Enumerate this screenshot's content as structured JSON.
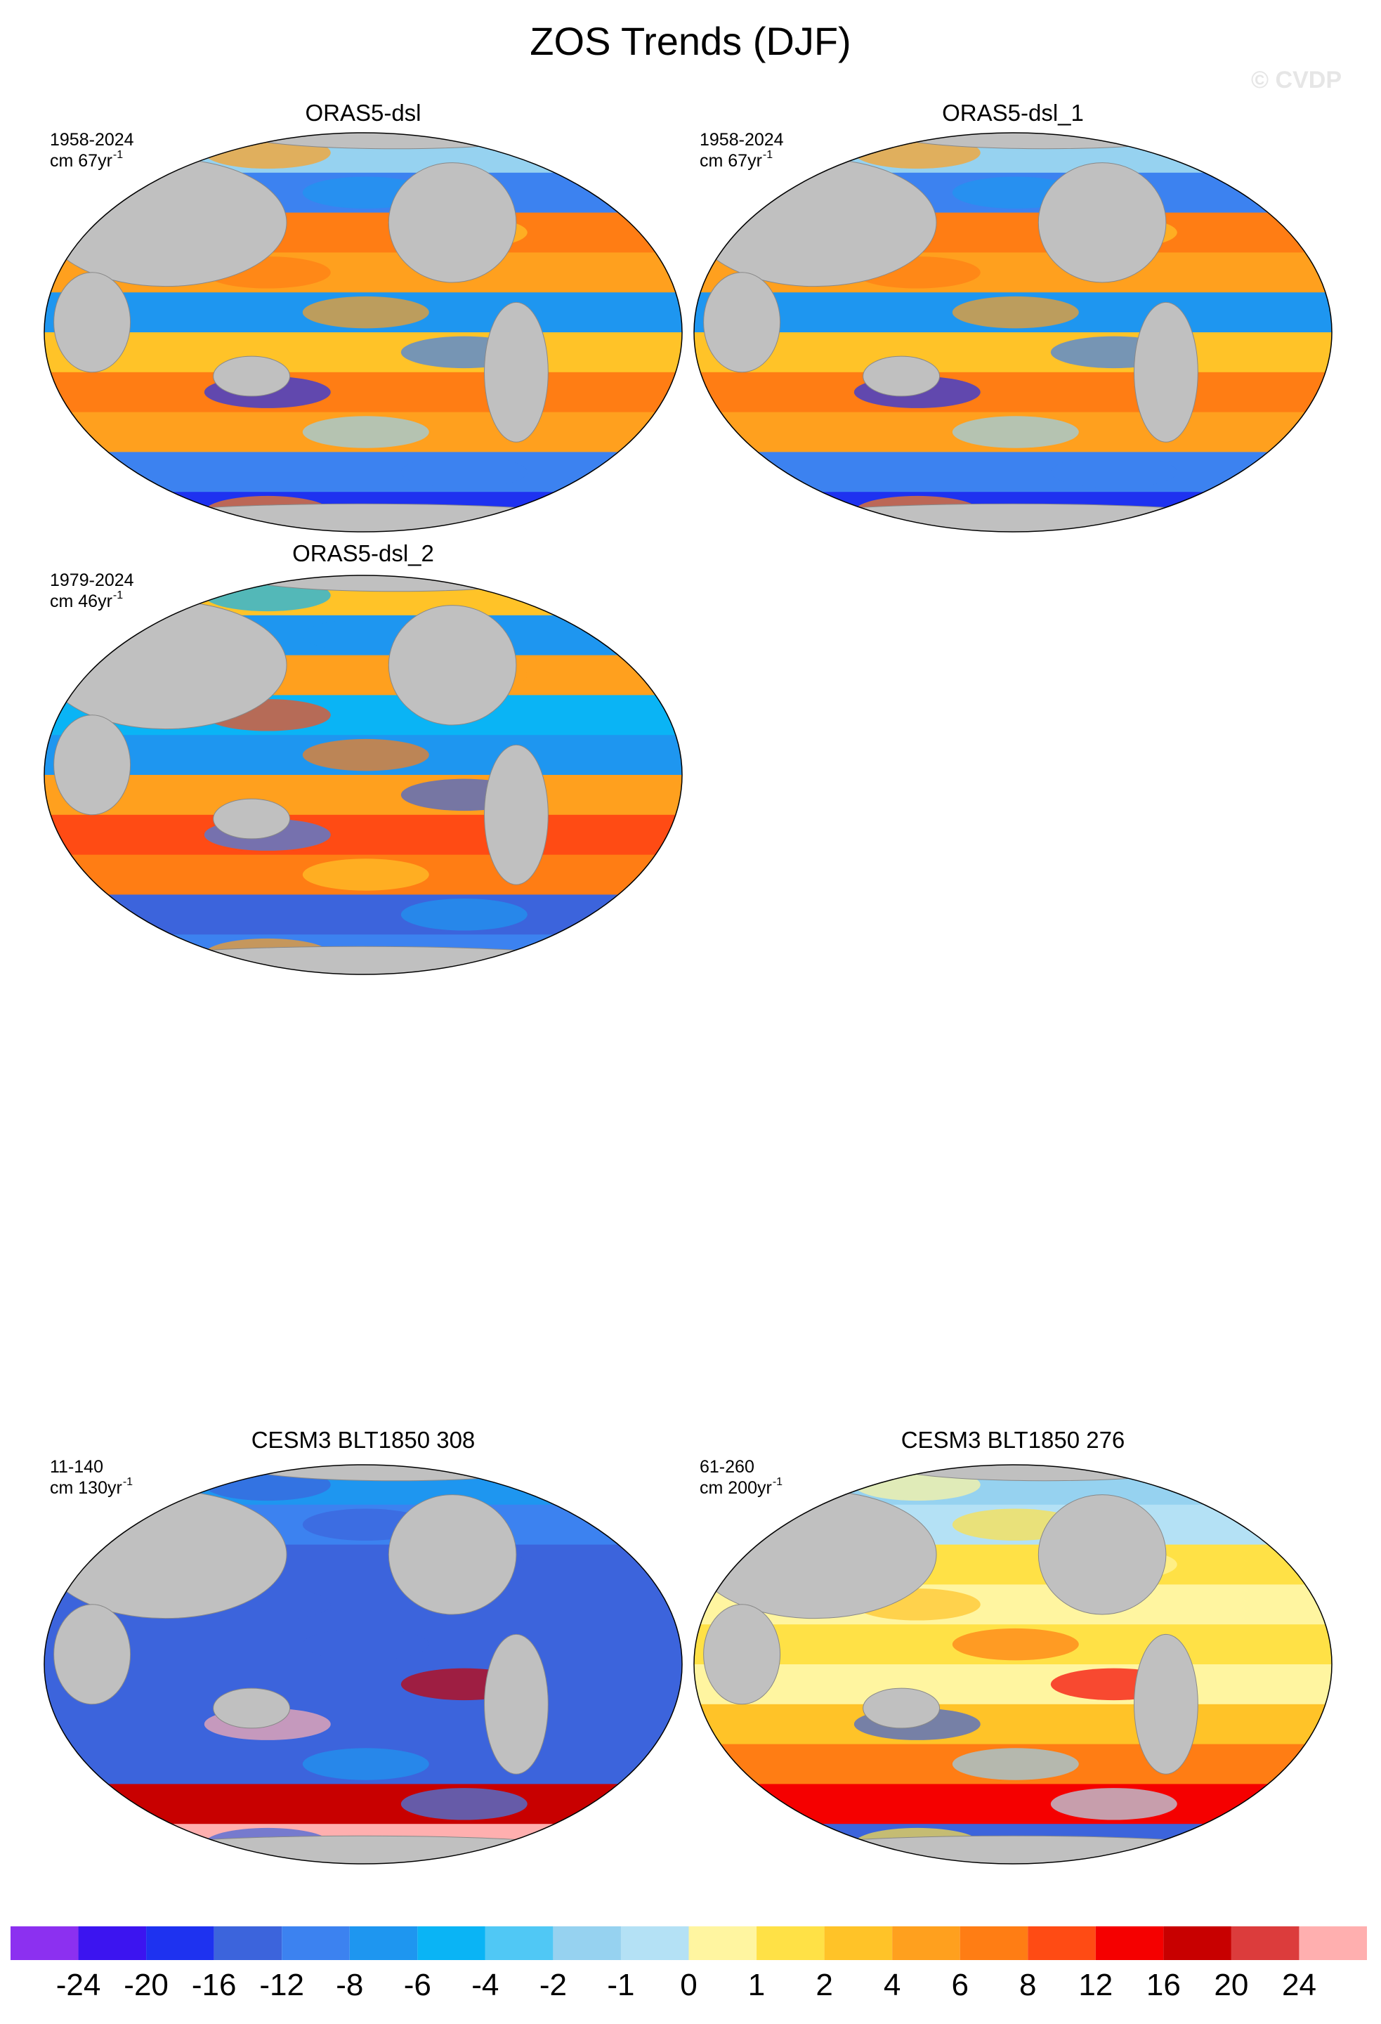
{
  "title": "ZOS Trends (DJF)",
  "watermark": "© CVDP",
  "panels": [
    {
      "title": "ORAS5-dsl",
      "period": "1958-2024",
      "units": "cm 67yr",
      "units_sup": "-1"
    },
    {
      "title": "ORAS5-dsl_1",
      "period": "1958-2024",
      "units": "cm 67yr",
      "units_sup": "-1"
    },
    {
      "title": "ORAS5-dsl_2",
      "period": "1979-2024",
      "units": "cm 46yr",
      "units_sup": "-1"
    },
    {
      "title": "CESM3 BLT1850 308",
      "period": "11-140",
      "units": "cm 130yr",
      "units_sup": "-1"
    },
    {
      "title": "CESM3 BLT1850 276",
      "period": "61-260",
      "units": "cm 200yr",
      "units_sup": "-1"
    }
  ],
  "colorbar": {
    "levels": [
      -24,
      -20,
      -16,
      -12,
      -8,
      -6,
      -4,
      -2,
      -1,
      0,
      1,
      2,
      4,
      6,
      8,
      12,
      16,
      20,
      24
    ],
    "colors": [
      "#8c30f0",
      "#3c14f0",
      "#1e32f0",
      "#3c64dc",
      "#3c82f0",
      "#1e96f0",
      "#0ab4f5",
      "#50c8f5",
      "#96d2f0",
      "#b4e1f5",
      "#fff5a0",
      "#ffe146",
      "#ffc328",
      "#ffa01e",
      "#ff7d14",
      "#ff4b14",
      "#f50000",
      "#c80000",
      "#dc3c3c",
      "#ffafaf"
    ]
  }
}
